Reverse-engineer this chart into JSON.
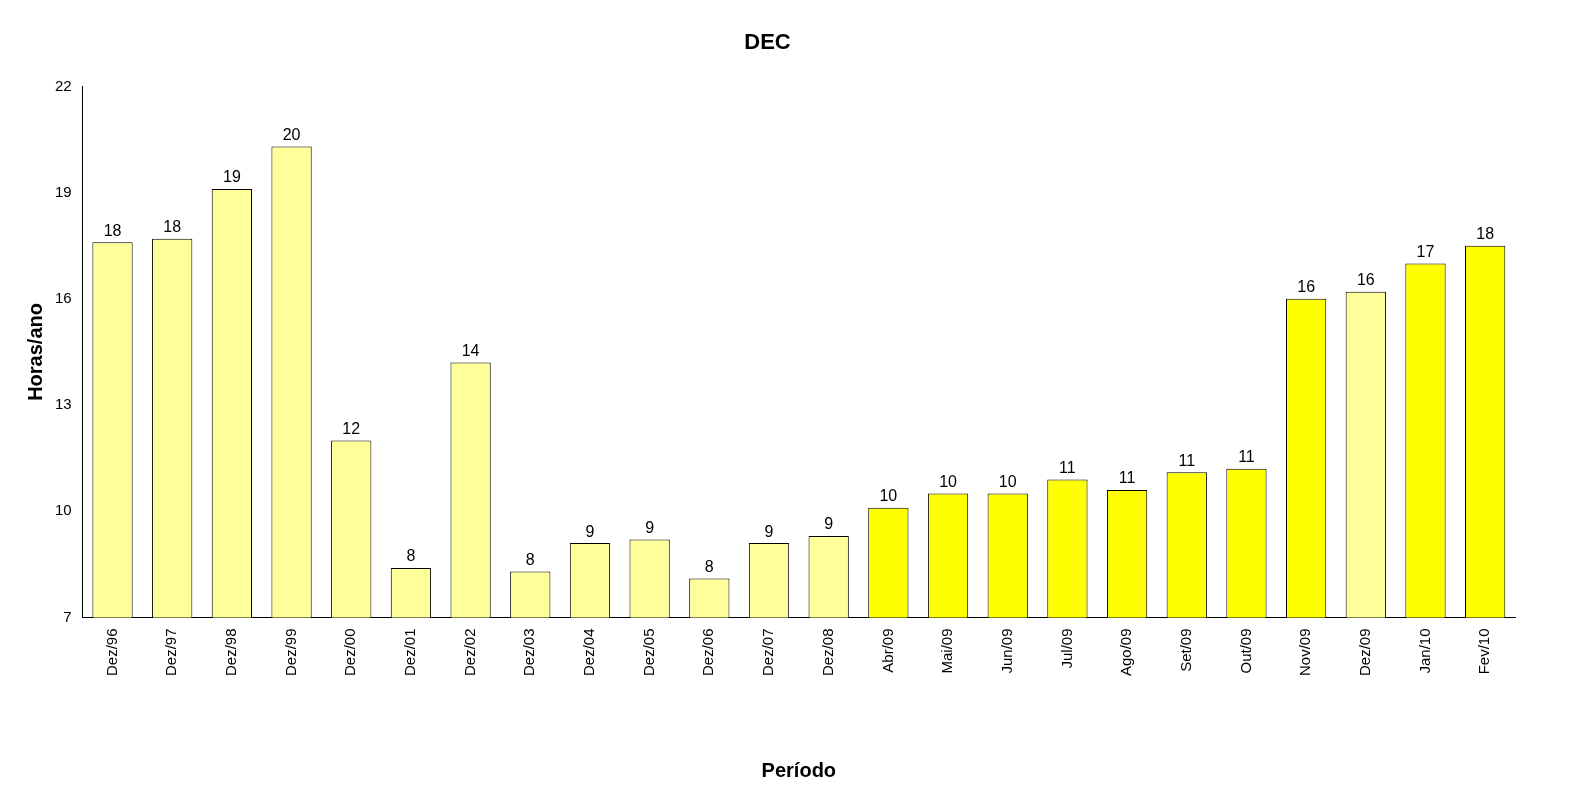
{
  "chart_data": {
    "type": "bar",
    "title": "DEC",
    "xlabel": "Período",
    "ylabel": "Horas/ano",
    "categories": [
      "Dez/96",
      "Dez/97",
      "Dez/98",
      "Dez/99",
      "Dez/00",
      "Dez/01",
      "Dez/02",
      "Dez/03",
      "Dez/04",
      "Dez/05",
      "Dez/06",
      "Dez/07",
      "Dez/08",
      "Abr/09",
      "Mai/09",
      "Jun/09",
      "Jul/09",
      "Ago/09",
      "Set/09",
      "Out/09",
      "Nov/09",
      "Dez/09",
      "Jan/10",
      "Fev/10"
    ],
    "values": [
      17.6,
      17.7,
      19.1,
      20.3,
      12.0,
      8.4,
      14.2,
      8.3,
      9.1,
      9.2,
      8.1,
      9.1,
      9.3,
      10.1,
      10.5,
      10.5,
      10.9,
      10.6,
      11.1,
      11.2,
      16.0,
      16.2,
      17.0,
      17.5
    ],
    "value_labels": [
      "18",
      "18",
      "19",
      "20",
      "12",
      "8",
      "14",
      "8",
      "9",
      "9",
      "8",
      "9",
      "9",
      "10",
      "10",
      "10",
      "11",
      "11",
      "11",
      "11",
      "16",
      "16",
      "17",
      "18"
    ],
    "colors": [
      "#ffff99",
      "#ffff99",
      "#ffff99",
      "#ffff99",
      "#ffff99",
      "#ffff99",
      "#ffff99",
      "#ffff99",
      "#ffff99",
      "#ffff99",
      "#ffff99",
      "#ffff99",
      "#ffff99",
      "#ffff00",
      "#ffff00",
      "#ffff00",
      "#ffff00",
      "#ffff00",
      "#ffff00",
      "#ffff00",
      "#ffff00",
      "#ffff99",
      "#ffff00",
      "#ffff00"
    ],
    "ylim": [
      7,
      22
    ],
    "yticks": [
      7,
      10,
      13,
      16,
      19,
      22
    ],
    "grid": false,
    "legend": false
  }
}
